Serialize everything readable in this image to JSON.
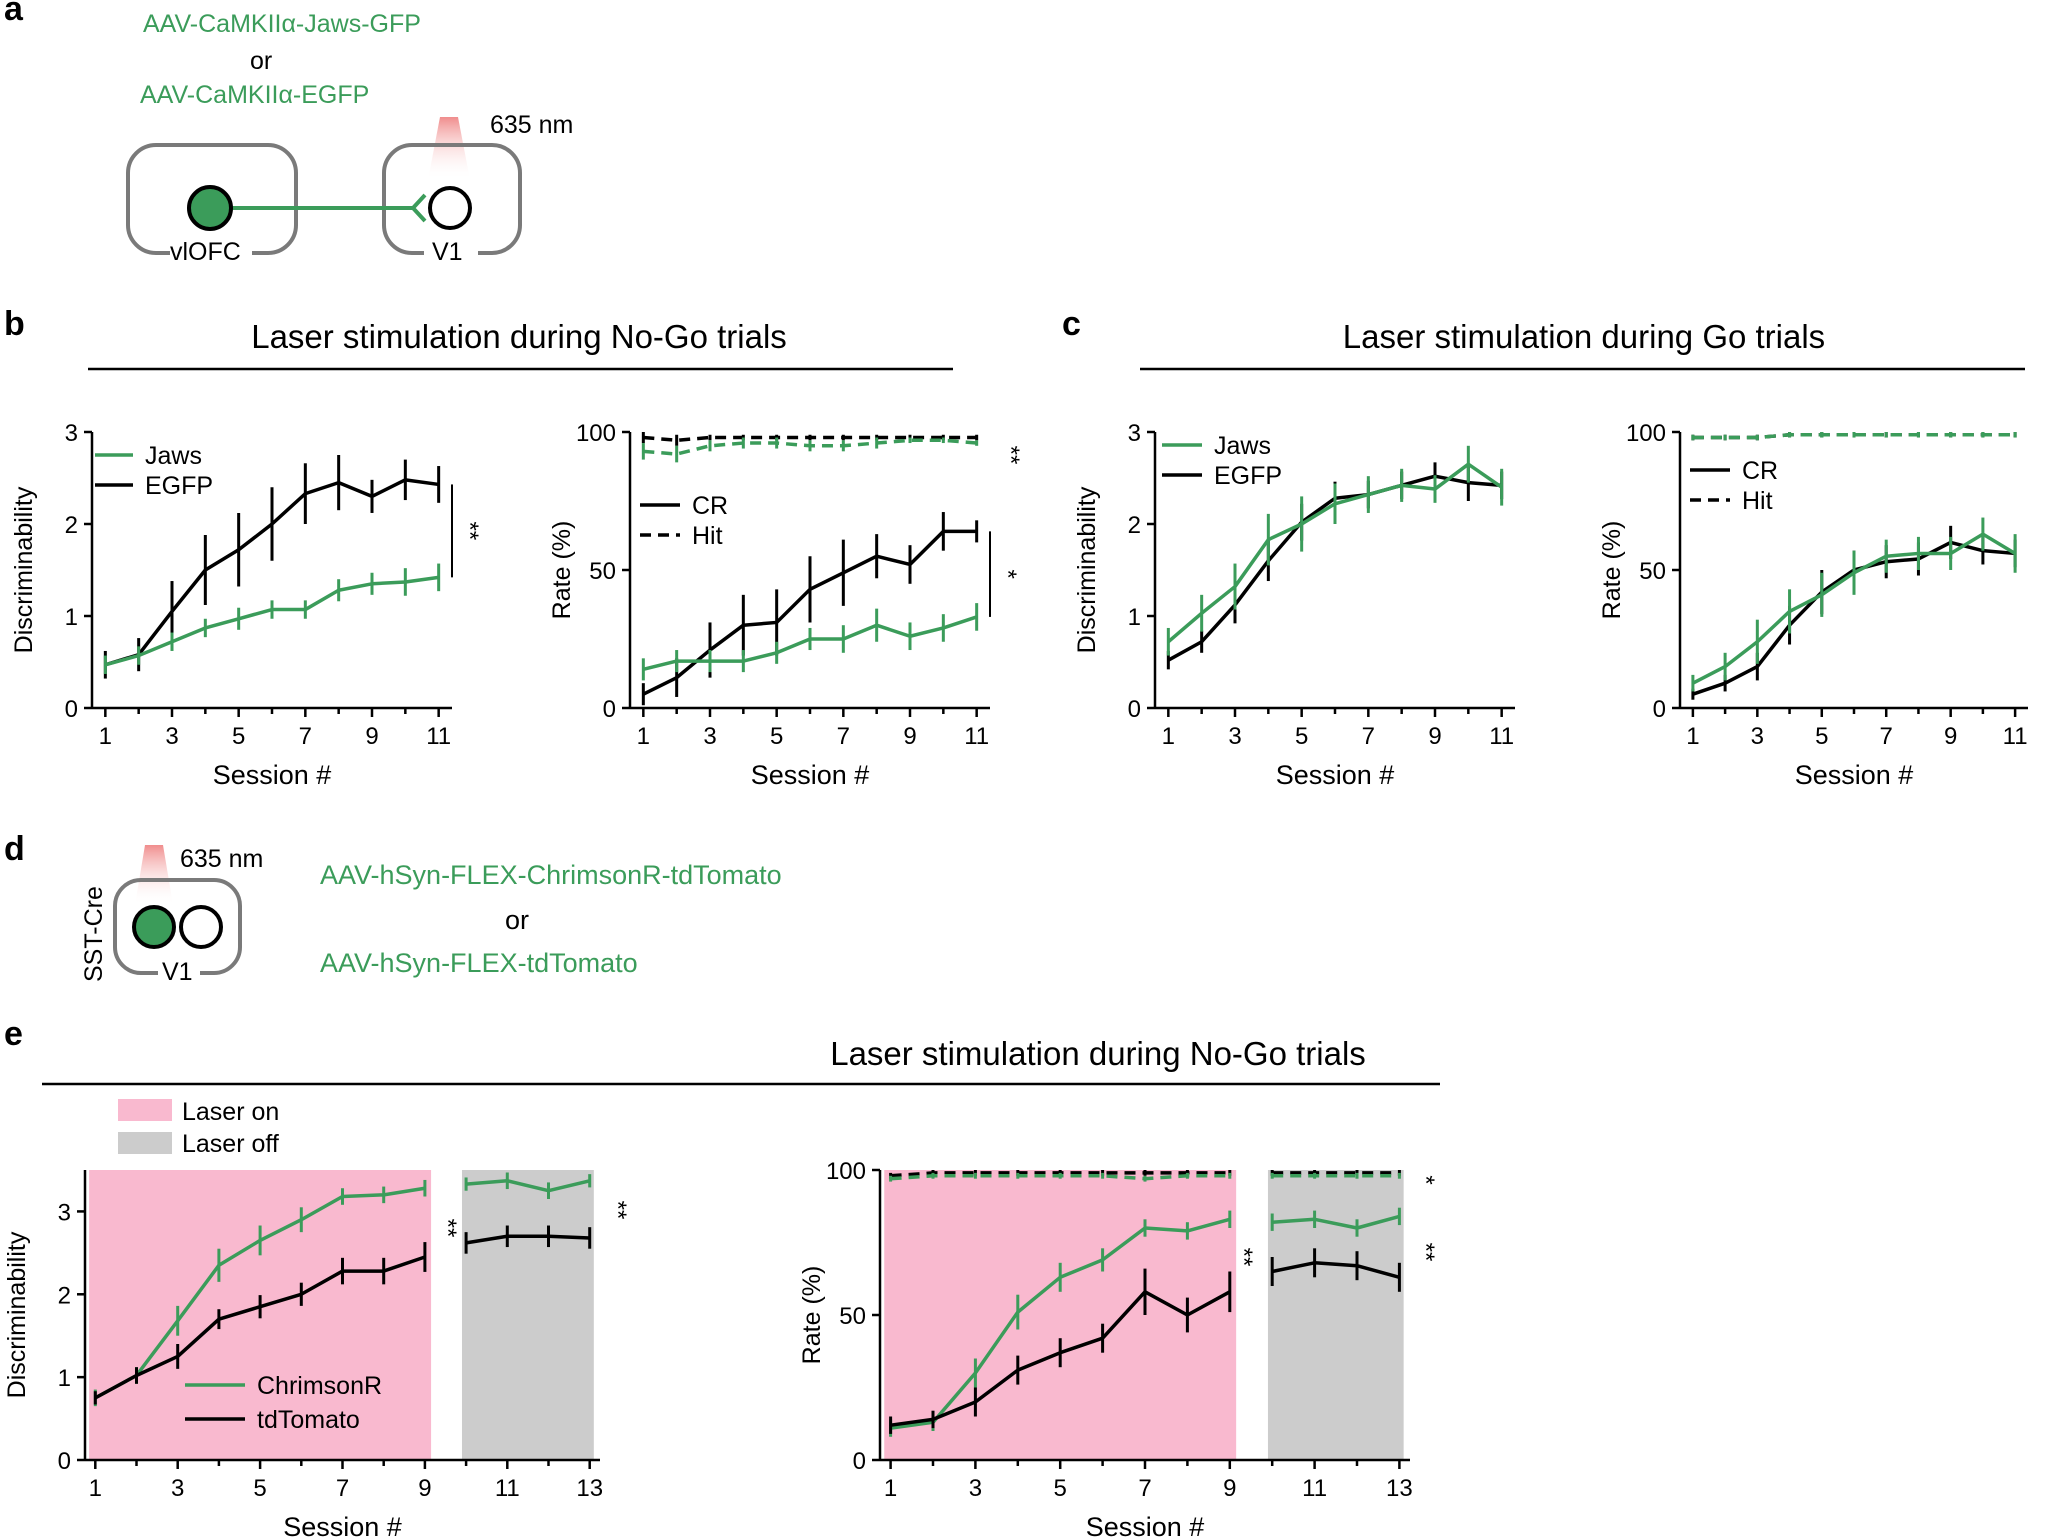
{
  "colors": {
    "green": "#3b9c5a",
    "black": "#000000",
    "laser_on": "#f9b9cf",
    "laser_off": "#cccccc",
    "light": "#f2a0a0"
  },
  "panel_letters": {
    "a": "a",
    "b": "b",
    "c": "c",
    "d": "d",
    "e": "e"
  },
  "panel_a": {
    "construct1": "AAV-CaMKIIα-Jaws-GFP",
    "or": "or",
    "construct2": "AAV-CaMKIIα-EGFP",
    "wavelength": "635 nm",
    "region1": "vlOFC",
    "region2": "V1"
  },
  "panel_d": {
    "line": "SST-Cre",
    "wavelength": "635 nm",
    "region": "V1",
    "construct1": "AAV-hSyn-FLEX-ChrimsonR-tdTomato",
    "or": "or",
    "construct2": "AAV-hSyn-FLEX-tdTomato"
  },
  "headers": {
    "b": "Laser stimulation during No-Go trials",
    "c": "Laser stimulation during Go trials",
    "e": "Laser stimulation during No-Go trials"
  },
  "chart_data": [
    {
      "id": "b1",
      "type": "line",
      "xlabel": "Session #",
      "ylabel": "Discriminability",
      "xlim": [
        0.6,
        11.4
      ],
      "ylim": [
        0,
        3
      ],
      "xticks": [
        "1",
        "3",
        "5",
        "7",
        "9",
        "11"
      ],
      "yticks": [
        "0",
        "1",
        "2",
        "3"
      ],
      "legend": [
        "Jaws",
        "EGFP"
      ],
      "series": [
        {
          "name": "EGFP",
          "color": "#000000",
          "dash": false,
          "x": [
            1,
            2,
            3,
            4,
            5,
            6,
            7,
            8,
            9,
            10,
            11
          ],
          "y": [
            0.47,
            0.58,
            1.05,
            1.5,
            1.72,
            2.0,
            2.33,
            2.45,
            2.3,
            2.48,
            2.43
          ],
          "err": [
            0.15,
            0.18,
            0.33,
            0.38,
            0.4,
            0.4,
            0.33,
            0.3,
            0.18,
            0.22,
            0.2
          ]
        },
        {
          "name": "Jaws",
          "color": "#3b9c5a",
          "dash": false,
          "x": [
            1,
            2,
            3,
            4,
            5,
            6,
            7,
            8,
            9,
            10,
            11
          ],
          "y": [
            0.47,
            0.57,
            0.72,
            0.87,
            0.97,
            1.07,
            1.07,
            1.28,
            1.35,
            1.37,
            1.42
          ],
          "err": [
            0.1,
            0.1,
            0.1,
            0.1,
            0.12,
            0.1,
            0.1,
            0.12,
            0.12,
            0.15,
            0.15
          ]
        }
      ],
      "sig": [
        {
          "text": "**",
          "y1": 1.42,
          "y2": 2.43
        }
      ]
    },
    {
      "id": "b2",
      "type": "line",
      "xlabel": "Session #",
      "ylabel": "Rate (%)",
      "xlim": [
        0.6,
        11.4
      ],
      "ylim": [
        0,
        100
      ],
      "xticks": [
        "1",
        "3",
        "5",
        "7",
        "9",
        "11"
      ],
      "yticks": [
        "0",
        "50",
        "100"
      ],
      "legend": [
        "CR",
        "Hit"
      ],
      "series": [
        {
          "name": "Hit EGFP",
          "color": "#000000",
          "dash": true,
          "x": [
            1,
            2,
            3,
            4,
            5,
            6,
            7,
            8,
            9,
            10,
            11
          ],
          "y": [
            98,
            97,
            98,
            98,
            98,
            98,
            98,
            98,
            98,
            98,
            98
          ],
          "err": [
            2,
            2,
            1,
            1,
            1,
            1,
            1,
            1,
            1,
            1,
            1
          ]
        },
        {
          "name": "Hit Jaws",
          "color": "#3b9c5a",
          "dash": true,
          "x": [
            1,
            2,
            3,
            4,
            5,
            6,
            7,
            8,
            9,
            10,
            11
          ],
          "y": [
            93,
            92,
            95,
            96,
            96,
            95,
            95,
            96,
            97,
            97,
            96
          ],
          "err": [
            3,
            3,
            2,
            2,
            2,
            2,
            2,
            2,
            1,
            1,
            1
          ]
        },
        {
          "name": "CR EGFP",
          "color": "#000000",
          "dash": false,
          "x": [
            1,
            2,
            3,
            4,
            5,
            6,
            7,
            8,
            9,
            10,
            11
          ],
          "y": [
            5,
            11,
            21,
            30,
            31,
            43,
            49,
            55,
            52,
            64,
            64
          ],
          "err": [
            4,
            7,
            10,
            11,
            12,
            12,
            12,
            8,
            7,
            7,
            4
          ]
        },
        {
          "name": "CR Jaws",
          "color": "#3b9c5a",
          "dash": false,
          "x": [
            1,
            2,
            3,
            4,
            5,
            6,
            7,
            8,
            9,
            10,
            11
          ],
          "y": [
            14,
            17,
            17,
            17,
            20,
            25,
            25,
            30,
            26,
            29,
            33
          ],
          "err": [
            4,
            4,
            4,
            4,
            4,
            4,
            5,
            6,
            5,
            5,
            5
          ]
        }
      ],
      "sig": [
        {
          "text": "**",
          "y1": 96,
          "y2": 98
        },
        {
          "text": "*",
          "y1": 33,
          "y2": 64
        }
      ]
    },
    {
      "id": "c1",
      "type": "line",
      "xlabel": "Session #",
      "ylabel": "Discriminability",
      "xlim": [
        0.6,
        11.4
      ],
      "ylim": [
        0,
        3
      ],
      "xticks": [
        "1",
        "3",
        "5",
        "7",
        "9",
        "11"
      ],
      "yticks": [
        "0",
        "1",
        "2",
        "3"
      ],
      "legend": [
        "Jaws",
        "EGFP"
      ],
      "series": [
        {
          "name": "EGFP",
          "color": "#000000",
          "dash": false,
          "x": [
            1,
            2,
            3,
            4,
            5,
            6,
            7,
            8,
            9,
            10,
            11
          ],
          "y": [
            0.52,
            0.72,
            1.12,
            1.6,
            2.02,
            2.28,
            2.32,
            2.42,
            2.52,
            2.45,
            2.42
          ],
          "err": [
            0.1,
            0.12,
            0.2,
            0.22,
            0.2,
            0.18,
            0.15,
            0.15,
            0.15,
            0.2,
            0.15
          ]
        },
        {
          "name": "Jaws",
          "color": "#3b9c5a",
          "dash": false,
          "x": [
            1,
            2,
            3,
            4,
            5,
            6,
            7,
            8,
            9,
            10,
            11
          ],
          "y": [
            0.72,
            1.03,
            1.32,
            1.83,
            2.0,
            2.22,
            2.32,
            2.42,
            2.38,
            2.65,
            2.4
          ],
          "err": [
            0.15,
            0.2,
            0.25,
            0.28,
            0.3,
            0.22,
            0.2,
            0.18,
            0.15,
            0.2,
            0.2
          ]
        }
      ],
      "sig": []
    },
    {
      "id": "c2",
      "type": "line",
      "xlabel": "Session #",
      "ylabel": "Rate (%)",
      "xlim": [
        0.6,
        11.4
      ],
      "ylim": [
        0,
        100
      ],
      "xticks": [
        "1",
        "3",
        "5",
        "7",
        "9",
        "11"
      ],
      "yticks": [
        "0",
        "50",
        "100"
      ],
      "legend": [
        "CR",
        "Hit"
      ],
      "series": [
        {
          "name": "Hit EGFP",
          "color": "#000000",
          "dash": true,
          "x": [
            1,
            2,
            3,
            4,
            5,
            6,
            7,
            8,
            9,
            10,
            11
          ],
          "y": [
            98,
            98,
            98,
            99,
            99,
            99,
            99,
            99,
            99,
            99,
            99
          ],
          "err": [
            1,
            1,
            1,
            1,
            1,
            1,
            1,
            1,
            1,
            1,
            1
          ]
        },
        {
          "name": "Hit Jaws",
          "color": "#3b9c5a",
          "dash": true,
          "x": [
            1,
            2,
            3,
            4,
            5,
            6,
            7,
            8,
            9,
            10,
            11
          ],
          "y": [
            98,
            98,
            98,
            99,
            99,
            99,
            99,
            99,
            99,
            99,
            99
          ],
          "err": [
            1,
            1,
            1,
            1,
            1,
            1,
            1,
            1,
            1,
            1,
            1
          ]
        },
        {
          "name": "CR EGFP",
          "color": "#000000",
          "dash": false,
          "x": [
            1,
            2,
            3,
            4,
            5,
            6,
            7,
            8,
            9,
            10,
            11
          ],
          "y": [
            5,
            9,
            15,
            30,
            42,
            50,
            53,
            54,
            60,
            57,
            56
          ],
          "err": [
            2,
            3,
            5,
            7,
            8,
            7,
            6,
            6,
            6,
            5,
            5
          ]
        },
        {
          "name": "CR Jaws",
          "color": "#3b9c5a",
          "dash": false,
          "x": [
            1,
            2,
            3,
            4,
            5,
            6,
            7,
            8,
            9,
            10,
            11
          ],
          "y": [
            9,
            15,
            24,
            35,
            41,
            49,
            55,
            56,
            56,
            63,
            56
          ],
          "err": [
            3,
            5,
            8,
            8,
            8,
            8,
            6,
            6,
            6,
            6,
            7
          ]
        }
      ],
      "sig": []
    },
    {
      "id": "e1",
      "type": "line",
      "xlabel": "Session #",
      "ylabel": "Discriminability",
      "xlim": [
        0.75,
        13.25
      ],
      "ylim": [
        0,
        3.5
      ],
      "xticks": [
        "1",
        "3",
        "5",
        "7",
        "9",
        "11",
        "13"
      ],
      "yticks": [
        "0",
        "1",
        "2",
        "3"
      ],
      "legend": [
        "ChrimsonR",
        "tdTomato"
      ],
      "shade": [
        {
          "x0": 0.85,
          "x1": 9.15,
          "color": "#f9b9cf"
        },
        {
          "x0": 9.9,
          "x1": 13.1,
          "color": "#cccccc"
        }
      ],
      "series": [
        {
          "name": "ChrimsonR on",
          "color": "#3b9c5a",
          "dash": false,
          "x": [
            1,
            2,
            3,
            4,
            5,
            6,
            7,
            8,
            9
          ],
          "y": [
            0.75,
            1.02,
            1.68,
            2.35,
            2.65,
            2.9,
            3.18,
            3.2,
            3.28
          ],
          "err": [
            0.1,
            0.1,
            0.18,
            0.2,
            0.18,
            0.15,
            0.1,
            0.1,
            0.1
          ]
        },
        {
          "name": "tdTomato on",
          "color": "#000000",
          "dash": false,
          "x": [
            1,
            2,
            3,
            4,
            5,
            6,
            7,
            8,
            9
          ],
          "y": [
            0.75,
            1.02,
            1.25,
            1.7,
            1.85,
            2.0,
            2.28,
            2.28,
            2.45
          ],
          "err": [
            0.08,
            0.1,
            0.15,
            0.12,
            0.14,
            0.14,
            0.16,
            0.16,
            0.18
          ]
        },
        {
          "name": "ChrimsonR off",
          "color": "#3b9c5a",
          "dash": false,
          "x": [
            10,
            11,
            12,
            13
          ],
          "y": [
            3.33,
            3.37,
            3.25,
            3.37
          ],
          "err": [
            0.08,
            0.1,
            0.1,
            0.08
          ]
        },
        {
          "name": "tdTomato off",
          "color": "#000000",
          "dash": false,
          "x": [
            10,
            11,
            12,
            13
          ],
          "y": [
            2.62,
            2.7,
            2.7,
            2.68
          ],
          "err": [
            0.13,
            0.13,
            0.13,
            0.13
          ]
        }
      ],
      "sig": [
        {
          "text": "**",
          "y1": 2.8,
          "y2": 3.0
        },
        {
          "text": "**",
          "y1": 2.9,
          "y2": 3.1
        }
      ]
    },
    {
      "id": "e2",
      "type": "line",
      "xlabel": "Session #",
      "ylabel": "Rate (%)",
      "xlim": [
        0.75,
        13.25
      ],
      "ylim": [
        0,
        100
      ],
      "xticks": [
        "1",
        "3",
        "5",
        "7",
        "9",
        "11",
        "13"
      ],
      "yticks": [
        "0",
        "50",
        "100"
      ],
      "legend": [],
      "shade": [
        {
          "x0": 0.85,
          "x1": 9.15,
          "color": "#f9b9cf"
        },
        {
          "x0": 9.9,
          "x1": 13.1,
          "color": "#cccccc"
        }
      ],
      "series": [
        {
          "name": "Hit tdTomato on",
          "color": "#000000",
          "dash": true,
          "x": [
            1,
            2,
            3,
            4,
            5,
            6,
            7,
            8,
            9
          ],
          "y": [
            98,
            99,
            99,
            99,
            99,
            99,
            99,
            99,
            99
          ],
          "err": [
            1,
            1,
            1,
            1,
            1,
            1,
            1,
            1,
            1
          ]
        },
        {
          "name": "Hit ChrimsonR on",
          "color": "#3b9c5a",
          "dash": true,
          "x": [
            1,
            2,
            3,
            4,
            5,
            6,
            7,
            8,
            9
          ],
          "y": [
            97,
            98,
            98,
            98,
            98,
            98,
            97,
            98,
            98
          ],
          "err": [
            1,
            1,
            1,
            1,
            1,
            1,
            1,
            1,
            1
          ]
        },
        {
          "name": "Hit tdTomato off",
          "color": "#000000",
          "dash": true,
          "x": [
            10,
            11,
            12,
            13
          ],
          "y": [
            99,
            99,
            99,
            99
          ],
          "err": [
            1,
            1,
            1,
            1
          ]
        },
        {
          "name": "Hit ChrimsonR off",
          "color": "#3b9c5a",
          "dash": true,
          "x": [
            10,
            11,
            12,
            13
          ],
          "y": [
            98,
            98,
            98,
            98
          ],
          "err": [
            1,
            1,
            1,
            1
          ]
        },
        {
          "name": "CR ChrimsonR on",
          "color": "#3b9c5a",
          "dash": false,
          "x": [
            1,
            2,
            3,
            4,
            5,
            6,
            7,
            8,
            9
          ],
          "y": [
            11,
            13,
            30,
            51,
            63,
            69,
            80,
            79,
            83
          ],
          "err": [
            3,
            3,
            5,
            6,
            5,
            4,
            3,
            3,
            3
          ]
        },
        {
          "name": "CR tdTomato on",
          "color": "#000000",
          "dash": false,
          "x": [
            1,
            2,
            3,
            4,
            5,
            6,
            7,
            8,
            9
          ],
          "y": [
            12,
            14,
            20,
            31,
            37,
            42,
            58,
            50,
            58
          ],
          "err": [
            3,
            3,
            5,
            5,
            5,
            5,
            8,
            6,
            7
          ]
        },
        {
          "name": "CR ChrimsonR off",
          "color": "#3b9c5a",
          "dash": false,
          "x": [
            10,
            11,
            12,
            13
          ],
          "y": [
            82,
            83,
            80,
            84
          ],
          "err": [
            3,
            3,
            3,
            3
          ]
        },
        {
          "name": "CR tdTomato off",
          "color": "#000000",
          "dash": false,
          "x": [
            10,
            11,
            12,
            13
          ],
          "y": [
            65,
            68,
            67,
            63
          ],
          "err": [
            5,
            5,
            5,
            5
          ]
        }
      ],
      "sig": [
        {
          "text": "**",
          "y1": 62,
          "y2": 82
        },
        {
          "text": "*",
          "y1": 98,
          "y2": 99
        },
        {
          "text": "**",
          "y1": 66,
          "y2": 83
        }
      ]
    }
  ],
  "legend_e": {
    "laser_on": "Laser on",
    "laser_off": "Laser off"
  }
}
